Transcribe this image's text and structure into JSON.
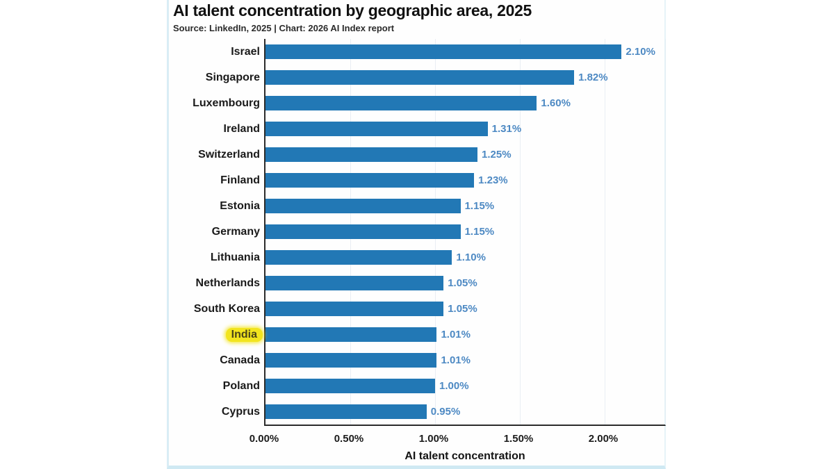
{
  "chart_data": {
    "type": "bar",
    "orientation": "horizontal",
    "title": "AI talent concentration by geographic area, 2025",
    "source": "Source: LinkedIn, 2025 | Chart: 2026 AI Index report",
    "xlabel": "AI talent concentration",
    "xlim": [
      0,
      2.37
    ],
    "grid": true,
    "legend": "none",
    "categories": [
      "Israel",
      "Singapore",
      "Luxembourg",
      "Ireland",
      "Switzerland",
      "Finland",
      "Estonia",
      "Germany",
      "Lithuania",
      "Netherlands",
      "South Korea",
      "India",
      "Canada",
      "Poland",
      "Cyprus"
    ],
    "values": [
      2.1,
      1.82,
      1.6,
      1.31,
      1.25,
      1.23,
      1.15,
      1.15,
      1.1,
      1.05,
      1.05,
      1.01,
      1.01,
      1.0,
      0.95
    ],
    "value_labels": [
      "2.10%",
      "1.82%",
      "1.60%",
      "1.31%",
      "1.25%",
      "1.23%",
      "1.15%",
      "1.15%",
      "1.10%",
      "1.05%",
      "1.05%",
      "1.01%",
      "1.01%",
      "1.00%",
      "0.95%"
    ],
    "x_tick_values": [
      0,
      0.5,
      1.0,
      1.5,
      2.0
    ],
    "x_tick_labels": [
      "0.00%",
      "0.50%",
      "1.00%",
      "1.50%",
      "2.00%"
    ],
    "highlighted_category": "India",
    "colors": {
      "bar": "#2278b5",
      "value_label": "#4d89c3",
      "axis_text": "#1c1c1c",
      "gridline": "#e9eef3",
      "highlight": "#f2e41e"
    }
  }
}
